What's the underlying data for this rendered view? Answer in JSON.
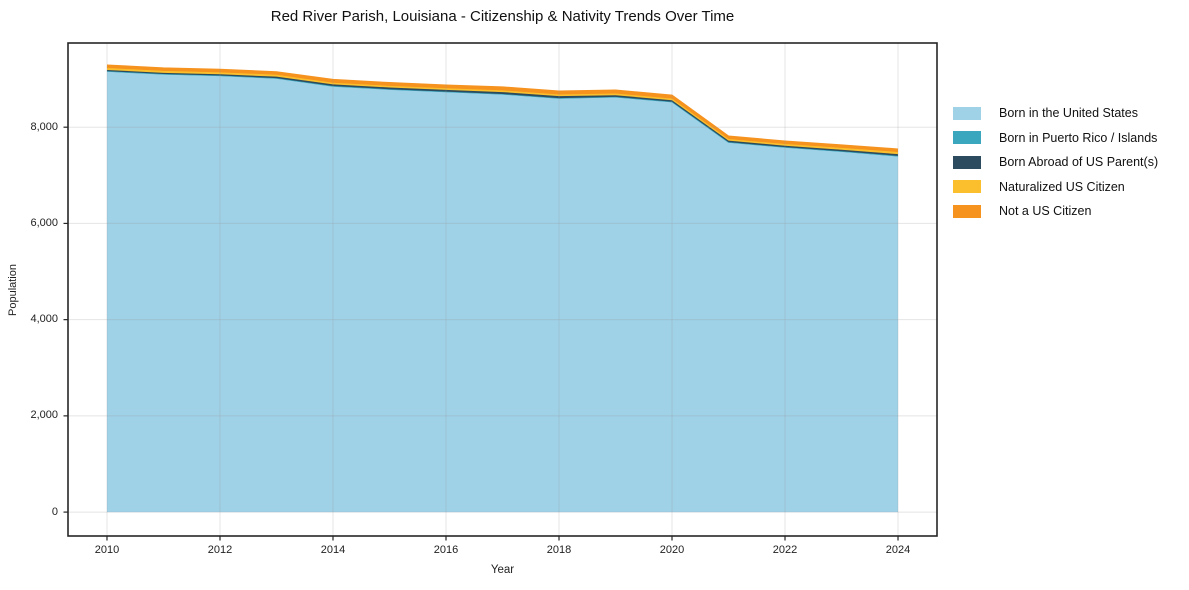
{
  "figure": {
    "background": "#ffffff"
  },
  "chart_data": {
    "type": "area",
    "stacked": true,
    "title": "Red River Parish, Louisiana - Citizenship & Nativity Trends Over Time",
    "xlabel": "Year",
    "ylabel": "Population",
    "x": [
      2010,
      2011,
      2012,
      2013,
      2014,
      2015,
      2016,
      2017,
      2018,
      2019,
      2020,
      2021,
      2022,
      2023,
      2024
    ],
    "series": [
      {
        "name": "Born in the United States",
        "color": "#9fd1e7",
        "values": [
          9155,
          9095,
          9065,
          9010,
          8845,
          8780,
          8730,
          8680,
          8595,
          8620,
          8520,
          7680,
          7575,
          7490,
          7390
        ]
      },
      {
        "name": "Born in Puerto Rico / Islands",
        "color": "#3ba7bf",
        "values": [
          10,
          10,
          10,
          10,
          10,
          10,
          10,
          10,
          10,
          10,
          10,
          10,
          10,
          10,
          15
        ]
      },
      {
        "name": "Born Abroad of US Parent(s)",
        "color": "#2c4b5e",
        "values": [
          25,
          25,
          25,
          30,
          35,
          35,
          35,
          40,
          40,
          35,
          30,
          30,
          30,
          30,
          35
        ]
      },
      {
        "name": "Naturalized US Citizen",
        "color": "#fbbf2d",
        "values": [
          40,
          40,
          40,
          40,
          35,
          35,
          35,
          35,
          35,
          35,
          35,
          35,
          35,
          40,
          45
        ]
      },
      {
        "name": "Not a US Citizen",
        "color": "#f6921e",
        "values": [
          60,
          60,
          60,
          60,
          65,
          65,
          65,
          70,
          70,
          70,
          70,
          60,
          60,
          60,
          60
        ]
      }
    ],
    "xticks": [
      2010,
      2012,
      2014,
      2016,
      2018,
      2020,
      2022,
      2024
    ],
    "xtick_labels": [
      "2010",
      "2012",
      "2014",
      "2016",
      "2018",
      "2020",
      "2022",
      "2024"
    ],
    "yticks": [
      0,
      2000,
      4000,
      6000,
      8000
    ],
    "ytick_labels": [
      "0",
      "2,000",
      "4,000",
      "6,000",
      "8,000"
    ],
    "xlim": [
      2009.31,
      2024.69
    ],
    "ylim": [
      -497,
      9750
    ],
    "grid": true,
    "legend_position": "right",
    "axis_color": "#262626",
    "grid_color": "rgba(150,150,150,0.25)"
  }
}
